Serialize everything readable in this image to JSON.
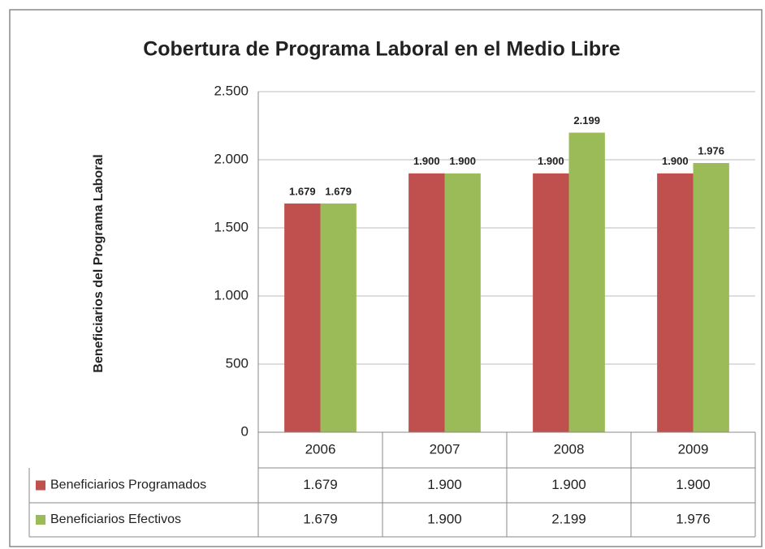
{
  "chart_data": {
    "type": "bar",
    "title": "Cobertura de Programa Laboral en el Medio Libre",
    "ylabel": "Beneficiarios del Programa Laboral",
    "categories": [
      "2006",
      "2007",
      "2008",
      "2009"
    ],
    "series": [
      {
        "name": "Beneficiarios Programados",
        "color": "#c0504d",
        "values": [
          1679,
          1900,
          1900,
          1900
        ],
        "value_labels": [
          "1.679",
          "1.900",
          "1.900",
          "1.900"
        ]
      },
      {
        "name": "Beneficiarios Efectivos",
        "color": "#9bbb59",
        "values": [
          1679,
          1900,
          2199,
          1976
        ],
        "value_labels": [
          "1.679",
          "1.900",
          "2.199",
          "1.976"
        ]
      }
    ],
    "ylim": [
      0,
      2500
    ],
    "yticks": [
      0,
      500,
      {
        "value": 1000,
        "label": "1.000"
      },
      {
        "value": 1500,
        "label": "1.500"
      },
      {
        "value": 2000,
        "label": "2.000"
      },
      {
        "value": 2500,
        "label": "2.500"
      }
    ],
    "grid": true,
    "data_table": true
  }
}
